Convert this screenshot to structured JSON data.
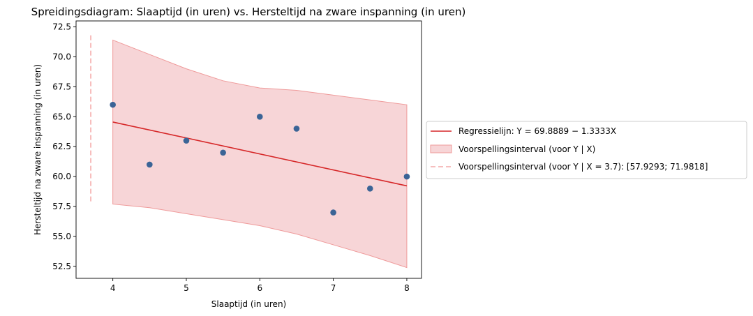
{
  "chart_data": {
    "type": "scatter",
    "title": "Spreidingsdiagram: Slaaptijd (in uren) vs. Hersteltijd na zware inspanning (in uren)",
    "xlabel": "Slaaptijd (in uren)",
    "ylabel": "Hersteltijd na zware inspanning (in uren)",
    "xlim": [
      3.5,
      8.2
    ],
    "ylim": [
      51.5,
      73.0
    ],
    "xticks": [
      4,
      5,
      6,
      7,
      8
    ],
    "xtick_labels": [
      "4",
      "5",
      "6",
      "7",
      "8"
    ],
    "yticks": [
      52.5,
      55.0,
      57.5,
      60.0,
      62.5,
      65.0,
      67.5,
      70.0,
      72.5
    ],
    "ytick_labels": [
      "52.5",
      "55.0",
      "57.5",
      "60.0",
      "62.5",
      "65.0",
      "67.5",
      "70.0",
      "72.5"
    ],
    "grid": false,
    "legend_position": "outside-right",
    "points": {
      "color": "#3b6496",
      "x": [
        4,
        4.5,
        5,
        5.5,
        6,
        6.5,
        7,
        7.5,
        8
      ],
      "y": [
        66,
        61,
        63,
        62,
        65,
        64,
        57,
        59,
        60
      ]
    },
    "regression": {
      "intercept": 69.8889,
      "slope": -1.3333,
      "x_range": [
        4,
        8
      ],
      "color": "#d62728",
      "legend_label": "Regressielijn: Y = 69.8889 − 1.3333X"
    },
    "prediction_band": {
      "color": "#f4c7c9",
      "edge_color": "#ef9a9a",
      "x": [
        4,
        4.5,
        5,
        5.5,
        6,
        6.5,
        7,
        7.5,
        8
      ],
      "lower": [
        57.7,
        57.4,
        56.9,
        56.4,
        55.9,
        55.2,
        54.3,
        53.4,
        52.4
      ],
      "upper": [
        71.4,
        70.2,
        69.0,
        68.0,
        67.4,
        67.2,
        66.8,
        66.4,
        66.0
      ],
      "legend_label": "Voorspellingsinterval (voor Y | X)"
    },
    "prediction_at_x": {
      "x": 3.7,
      "lower": 57.9293,
      "upper": 71.9818,
      "color": "#f4a9a8",
      "legend_label": "Voorspellingsinterval (voor Y | X = 3.7): [57.9293; 71.9818]"
    }
  }
}
